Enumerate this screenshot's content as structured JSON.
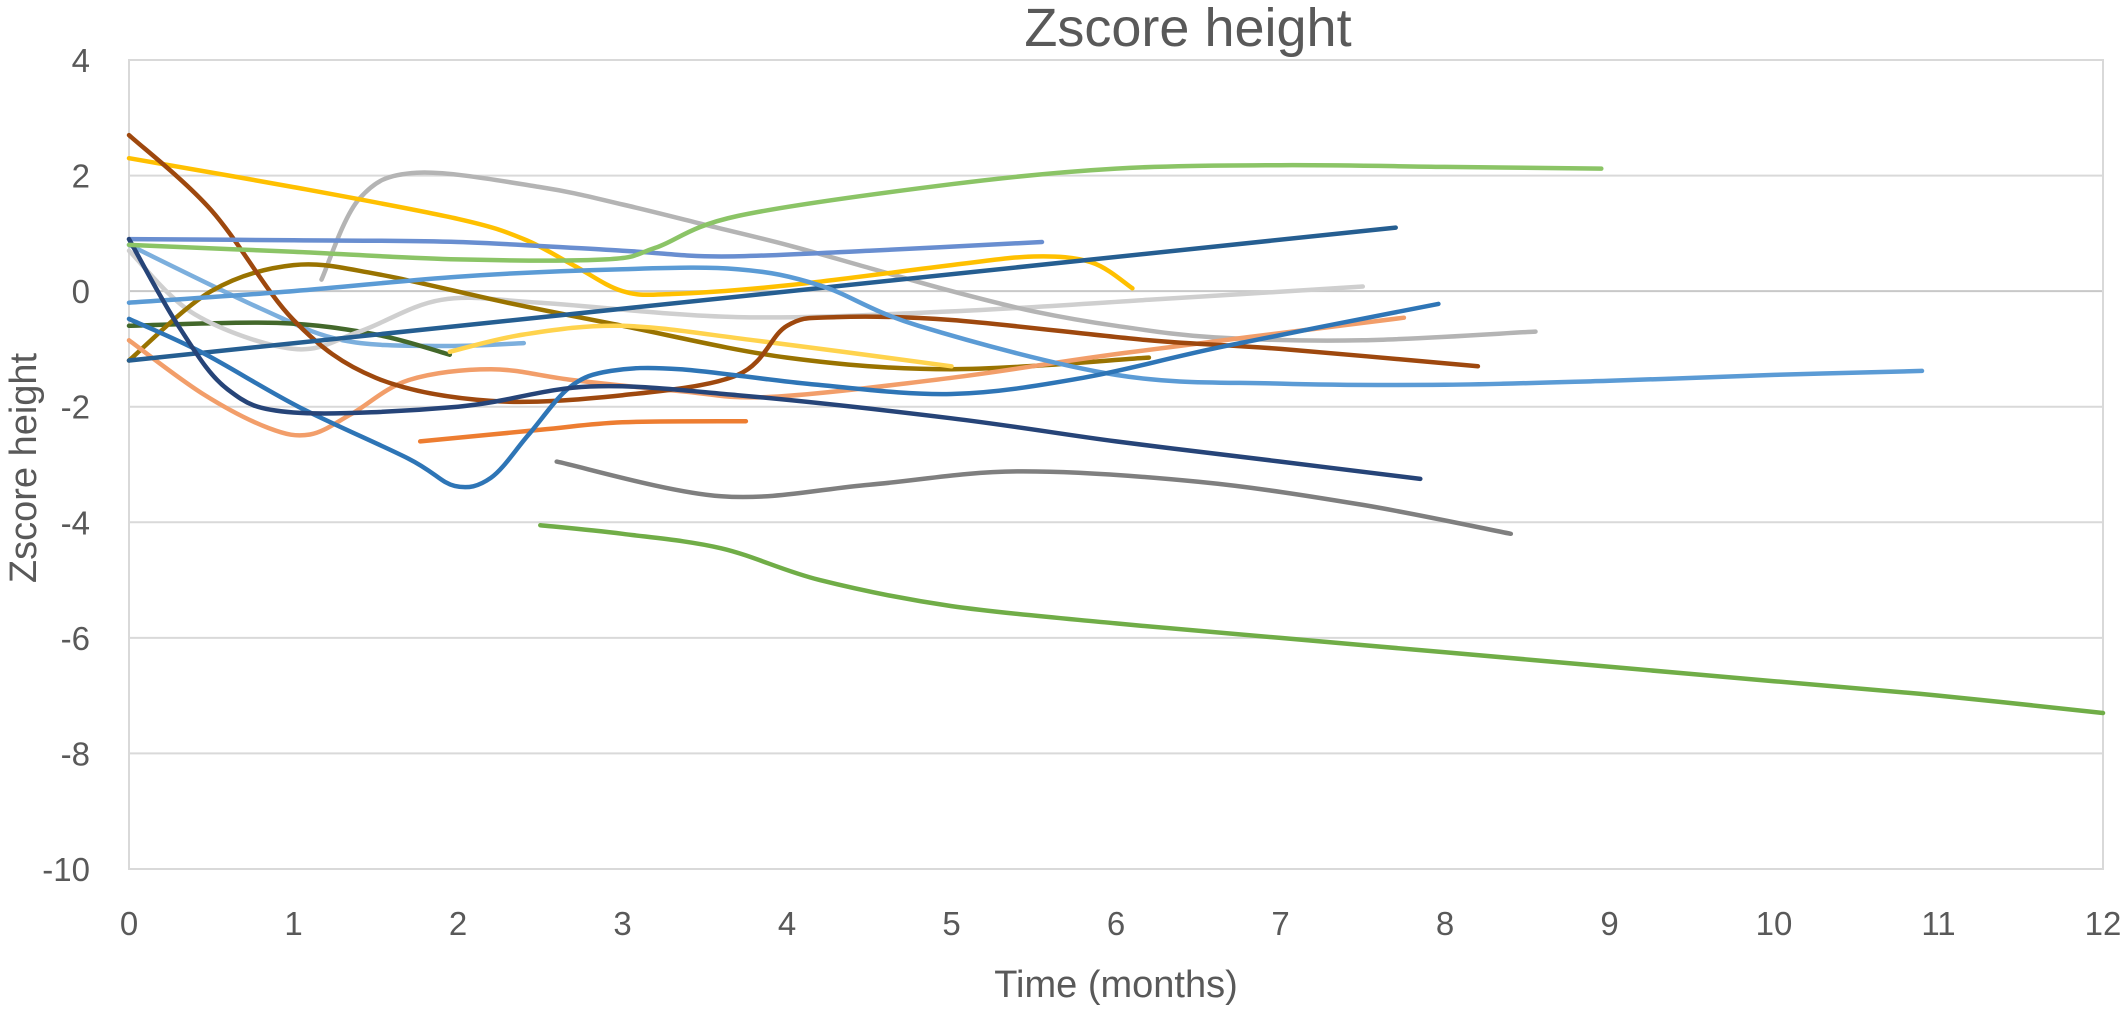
{
  "chart_data": {
    "type": "line",
    "title": "Zscore height",
    "xlabel": "Time (months)",
    "ylabel": "Zscore height",
    "xlim": [
      0,
      12
    ],
    "ylim": [
      -10,
      4
    ],
    "xticks": [
      0,
      1,
      2,
      3,
      4,
      5,
      6,
      7,
      8,
      9,
      10,
      11,
      12
    ],
    "yticks": [
      4,
      2,
      0,
      -2,
      -4,
      -6,
      -8,
      -10
    ],
    "grid": "horizontal",
    "legend": "none",
    "smoothed": true,
    "series": [
      {
        "color": "#7CAFDD",
        "x": [
          0,
          0.8,
          1.3,
          1.9,
          2.4
        ],
        "y": [
          0.8,
          -0.3,
          -0.85,
          -0.95,
          -0.9
        ]
      },
      {
        "color": "#43682B",
        "x": [
          0,
          0.9,
          1.5,
          1.95
        ],
        "y": [
          -0.6,
          -0.55,
          -0.75,
          -1.1
        ]
      },
      {
        "color": "#CFCFCF",
        "x": [
          0,
          0.4,
          1,
          1.4,
          1.9,
          2.5,
          3.7,
          5,
          6.2,
          7.5
        ],
        "y": [
          0.7,
          -0.4,
          -1.0,
          -0.7,
          -0.15,
          -0.2,
          -0.45,
          -0.35,
          -0.15,
          0.08
        ]
      },
      {
        "color": "#B4B4B4",
        "x": [
          1.17,
          1.4,
          1.75,
          2.5,
          3,
          3.5,
          4,
          4.5,
          5,
          5.5,
          6,
          6.6,
          7.5,
          8.55
        ],
        "y": [
          0.2,
          1.6,
          2.05,
          1.8,
          1.5,
          1.15,
          0.8,
          0.4,
          0.0,
          -0.35,
          -0.6,
          -0.8,
          -0.85,
          -0.7
        ]
      },
      {
        "color": "#997300",
        "x": [
          0,
          0.5,
          1,
          1.5,
          2.3,
          3,
          4,
          5,
          6.2
        ],
        "y": [
          -1.2,
          0.0,
          0.45,
          0.3,
          -0.2,
          -0.6,
          -1.15,
          -1.35,
          -1.15
        ]
      },
      {
        "color": "#FFD34D",
        "x": [
          1.95,
          2.4,
          3,
          3.8,
          5
        ],
        "y": [
          -1.05,
          -0.75,
          -0.6,
          -0.85,
          -1.3
        ]
      },
      {
        "color": "#FFC000",
        "x": [
          0,
          1,
          2,
          2.4,
          2.7,
          3,
          3.3,
          4,
          5,
          5.5,
          5.85,
          6.1
        ],
        "y": [
          2.3,
          1.8,
          1.25,
          0.9,
          0.45,
          0.0,
          -0.05,
          0.1,
          0.45,
          0.6,
          0.5,
          0.05
        ]
      },
      {
        "color": "#F29E6A",
        "x": [
          0,
          0.45,
          0.85,
          1.1,
          1.35,
          1.7,
          2.2,
          2.7,
          3.35,
          3.9,
          5,
          6.05,
          7.75
        ],
        "y": [
          -0.85,
          -1.78,
          -2.37,
          -2.48,
          -2.13,
          -1.54,
          -1.35,
          -1.54,
          -1.73,
          -1.83,
          -1.5,
          -1.07,
          -0.46
        ]
      },
      {
        "color": "#ED7D31",
        "x": [
          1.77,
          2.5,
          3,
          3.75
        ],
        "y": [
          -2.6,
          -2.4,
          -2.27,
          -2.25
        ]
      },
      {
        "color": "#9E480E",
        "x": [
          0,
          0.5,
          1,
          1.5,
          2.2,
          3,
          3.7,
          4.0,
          4.3,
          5,
          6.2,
          7,
          8.2
        ],
        "y": [
          2.7,
          1.4,
          -0.5,
          -1.5,
          -1.9,
          -1.8,
          -1.45,
          -0.6,
          -0.45,
          -0.5,
          -0.85,
          -1.0,
          -1.3
        ]
      },
      {
        "color": "#255E91",
        "x": [
          0,
          7.7
        ],
        "y": [
          -1.2,
          1.1
        ]
      },
      {
        "color": "#698ED0",
        "x": [
          0,
          1,
          2,
          3,
          3.6,
          4.5,
          5.55
        ],
        "y": [
          0.9,
          0.88,
          0.85,
          0.7,
          0.6,
          0.7,
          0.85
        ]
      },
      {
        "color": "#5B9BD5",
        "x": [
          0,
          1,
          2,
          3,
          3.7,
          4.2,
          4.8,
          6,
          7,
          8,
          9,
          10,
          10.9
        ],
        "y": [
          -0.2,
          0.0,
          0.25,
          0.38,
          0.38,
          0.1,
          -0.6,
          -1.45,
          -1.6,
          -1.62,
          -1.55,
          -1.45,
          -1.38
        ]
      },
      {
        "color": "#2E75B6",
        "x": [
          0,
          0.45,
          1.03,
          1.7,
          1.98,
          2.2,
          2.43,
          2.68,
          2.93,
          3.35,
          4.15,
          5,
          5.8,
          6.65,
          7.96
        ],
        "y": [
          -0.48,
          -1.07,
          -2.0,
          -2.9,
          -3.37,
          -3.23,
          -2.48,
          -1.66,
          -1.38,
          -1.35,
          -1.61,
          -1.78,
          -1.5,
          -0.96,
          -0.22
        ]
      },
      {
        "color": "#264478",
        "x": [
          0,
          0.3,
          0.6,
          1,
          2,
          2.8,
          3.7,
          5,
          6,
          7,
          7.85
        ],
        "y": [
          0.9,
          -0.6,
          -1.7,
          -2.1,
          -2.0,
          -1.65,
          -1.8,
          -2.2,
          -2.6,
          -2.95,
          -3.25
        ]
      },
      {
        "color": "#7F7F7F",
        "x": [
          2.6,
          3.6,
          4.5,
          5.4,
          6.5,
          7.5,
          8.4
        ],
        "y": [
          -2.95,
          -3.55,
          -3.35,
          -3.12,
          -3.3,
          -3.7,
          -4.2
        ]
      },
      {
        "color": "#8BC466",
        "x": [
          0,
          1,
          2,
          2.9,
          3.2,
          3.7,
          5,
          6,
          7,
          8,
          8.95
        ],
        "y": [
          0.8,
          0.68,
          0.55,
          0.55,
          0.75,
          1.3,
          1.85,
          2.12,
          2.18,
          2.15,
          2.12
        ]
      },
      {
        "color": "#70AD47",
        "x": [
          2.5,
          3,
          3.6,
          4.2,
          5,
          6,
          7,
          8,
          9,
          10,
          11,
          12
        ],
        "y": [
          -4.05,
          -4.2,
          -4.45,
          -5.0,
          -5.45,
          -5.75,
          -6.0,
          -6.25,
          -6.5,
          -6.75,
          -7.0,
          -7.3
        ]
      }
    ]
  },
  "colors": {
    "text": "#595959",
    "grid": "#D9D9D9",
    "zero_line": "#C8C8C8"
  }
}
